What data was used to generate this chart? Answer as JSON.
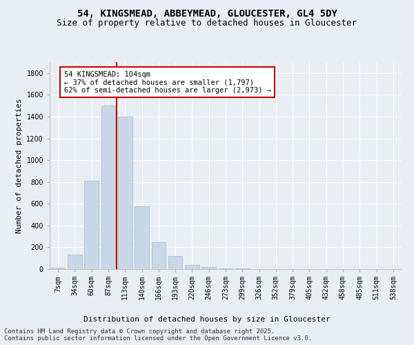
{
  "title_line1": "54, KINGSMEAD, ABBEYMEAD, GLOUCESTER, GL4 5DY",
  "title_line2": "Size of property relative to detached houses in Gloucester",
  "xlabel": "Distribution of detached houses by size in Gloucester",
  "ylabel": "Number of detached properties",
  "categories": [
    "7sqm",
    "34sqm",
    "60sqm",
    "87sqm",
    "113sqm",
    "140sqm",
    "166sqm",
    "193sqm",
    "220sqm",
    "246sqm",
    "273sqm",
    "299sqm",
    "326sqm",
    "352sqm",
    "379sqm",
    "405sqm",
    "432sqm",
    "458sqm",
    "485sqm",
    "511sqm",
    "538sqm"
  ],
  "values": [
    10,
    135,
    810,
    1500,
    1400,
    575,
    250,
    120,
    35,
    22,
    5,
    5,
    0,
    0,
    0,
    0,
    0,
    0,
    0,
    0,
    0
  ],
  "bar_color": "#c8d8e8",
  "bar_edgecolor": "#a0b8cc",
  "vline_x_index": 4,
  "vline_color": "#cc0000",
  "annotation_text": "54 KINGSMEAD: 104sqm\n← 37% of detached houses are smaller (1,797)\n62% of semi-detached houses are larger (2,973) →",
  "annotation_box_color": "#ffffff",
  "annotation_box_edgecolor": "#cc0000",
  "ylim": [
    0,
    1900
  ],
  "yticks": [
    0,
    200,
    400,
    600,
    800,
    1000,
    1200,
    1400,
    1600,
    1800
  ],
  "background_color": "#e8eef4",
  "grid_color": "#ffffff",
  "footer_line1": "Contains HM Land Registry data © Crown copyright and database right 2025.",
  "footer_line2": "Contains public sector information licensed under the Open Government Licence v3.0.",
  "title_fontsize": 10,
  "subtitle_fontsize": 9,
  "axis_label_fontsize": 8,
  "tick_fontsize": 7,
  "annotation_fontsize": 7.5,
  "footer_fontsize": 6.5
}
